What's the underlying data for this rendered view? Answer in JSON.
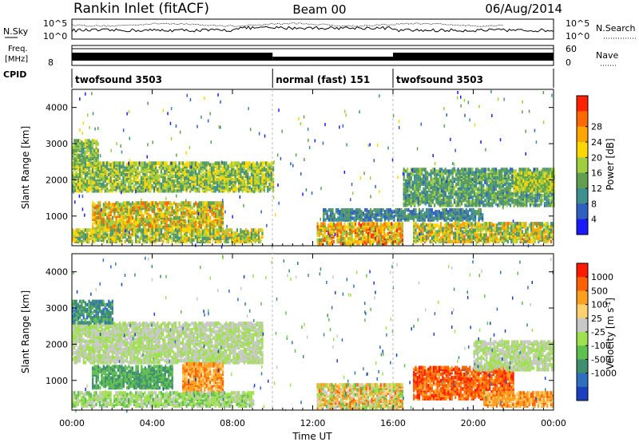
{
  "header": {
    "station": "Rankin Inlet (fitACF)",
    "beam": "Beam 00",
    "date": "06/Aug/2014"
  },
  "strip_panels": {
    "noise": {
      "left_label": "N.Sky",
      "right_label": "N.Search",
      "left_ticks": [
        "10^5",
        "10^0"
      ],
      "right_ticks": [
        "10^5",
        "10^0"
      ]
    },
    "freq": {
      "left_label_1": "Freq.",
      "left_label_2": "[MHz]",
      "left_ticks": [
        "8"
      ],
      "right_label": "Nave",
      "right_ticks": [
        "60",
        "0"
      ]
    },
    "cpid": {
      "label": "CPID",
      "segments": [
        {
          "label": "twofsound 3503",
          "start_hour": 0.0,
          "end_hour": 10.0
        },
        {
          "label": "normal (fast) 151",
          "start_hour": 10.0,
          "end_hour": 16.0
        },
        {
          "label": "twofsound 3503",
          "start_hour": 16.0,
          "end_hour": 24.0
        }
      ]
    }
  },
  "x_axis": {
    "title": "Time UT",
    "range_hours": [
      0,
      24
    ],
    "tick_hours": [
      0,
      4,
      8,
      12,
      16,
      20,
      24
    ],
    "tick_labels": [
      "00:00",
      "04:00",
      "08:00",
      "12:00",
      "16:00",
      "20:00",
      "00:00"
    ]
  },
  "chart_data": [
    {
      "type": "heatmap",
      "name": "power",
      "ylabel": "Slant Range [km]",
      "ylim": [
        180,
        4500
      ],
      "y_ticks": [
        1000,
        2000,
        3000,
        4000
      ],
      "colorbar": {
        "label": "Power [dB]",
        "tick_labels": [
          "4",
          "8",
          "12",
          "16",
          "20",
          "24",
          "28"
        ],
        "range": [
          0,
          30
        ],
        "colors": [
          "#1a1aff",
          "#2f5fbf",
          "#3f8f8f",
          "#5f9f4f",
          "#9fcf3f",
          "#ffd700",
          "#ffa500",
          "#ff6a00",
          "#ff2200"
        ]
      },
      "echo_regions": [
        {
          "t0": 0.0,
          "t1": 10.0,
          "r0": 1700,
          "r1": 2500,
          "v0": 8,
          "v1": 20
        },
        {
          "t0": 0.0,
          "t1": 1.3,
          "r0": 2500,
          "r1": 3100,
          "v0": 8,
          "v1": 18
        },
        {
          "t0": 1.0,
          "t1": 7.5,
          "r0": 600,
          "r1": 1400,
          "v0": 10,
          "v1": 26
        },
        {
          "t0": 0.0,
          "t1": 9.5,
          "r0": 300,
          "r1": 650,
          "v0": 8,
          "v1": 22
        },
        {
          "t0": 12.2,
          "t1": 16.5,
          "r0": 250,
          "r1": 800,
          "v0": 12,
          "v1": 28
        },
        {
          "t0": 12.5,
          "t1": 20.5,
          "r0": 900,
          "r1": 1200,
          "v0": 4,
          "v1": 12
        },
        {
          "t0": 16.5,
          "t1": 24.0,
          "r0": 1300,
          "r1": 2300,
          "v0": 6,
          "v1": 16
        },
        {
          "t0": 17.0,
          "t1": 24.0,
          "r0": 300,
          "r1": 800,
          "v0": 8,
          "v1": 24
        },
        {
          "t0": 22.0,
          "t1": 24.0,
          "r0": 1700,
          "r1": 2200,
          "v0": 10,
          "v1": 20
        }
      ]
    },
    {
      "type": "heatmap",
      "name": "velocity",
      "ylabel": "Slant Range [km]",
      "ylim": [
        180,
        4500
      ],
      "y_ticks": [
        1000,
        2000,
        3000,
        4000
      ],
      "colorbar": {
        "label": "Velocity [m s^-1]",
        "tick_labels": [
          "1000",
          "500",
          "100",
          "25",
          "-25",
          "-100",
          "-500",
          "-1000"
        ],
        "colors": [
          "#1a3fbf",
          "#2f6fbf",
          "#3f8f6f",
          "#5fbf4f",
          "#9fe04f",
          "#c8c8c8",
          "#ffd070",
          "#ff9f20",
          "#ff6000",
          "#ff1a00"
        ]
      },
      "echo_regions": [
        {
          "t0": 0.0,
          "t1": 9.5,
          "r0": 1500,
          "r1": 2600,
          "v0": 4,
          "v1": 5
        },
        {
          "t0": 0.0,
          "t1": 2.0,
          "r0": 2600,
          "r1": 3200,
          "v0": 1,
          "v1": 3
        },
        {
          "t0": 1.0,
          "t1": 5.0,
          "r0": 800,
          "r1": 1400,
          "v0": 2,
          "v1": 3
        },
        {
          "t0": 5.5,
          "t1": 7.5,
          "r0": 600,
          "r1": 1500,
          "v0": 6,
          "v1": 8
        },
        {
          "t0": 0.0,
          "t1": 9.0,
          "r0": 300,
          "r1": 700,
          "v0": 3,
          "v1": 5
        },
        {
          "t0": 12.2,
          "t1": 16.5,
          "r0": 250,
          "r1": 900,
          "v0": 3,
          "v1": 8
        },
        {
          "t0": 17.0,
          "t1": 22.0,
          "r0": 500,
          "r1": 1400,
          "v0": 7,
          "v1": 9
        },
        {
          "t0": 20.0,
          "t1": 24.0,
          "r0": 1300,
          "r1": 2100,
          "v0": 4,
          "v1": 5
        },
        {
          "t0": 20.5,
          "t1": 24.0,
          "r0": 300,
          "r1": 700,
          "v0": 6,
          "v1": 8
        }
      ]
    }
  ]
}
